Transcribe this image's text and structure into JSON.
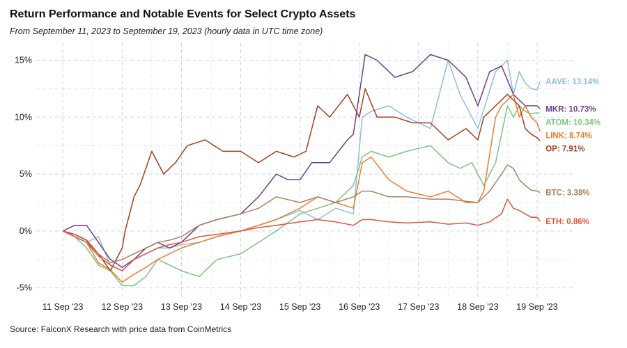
{
  "chart_data": {
    "type": "line",
    "title": "Return Performance and Notable Events for Select Crypto Assets",
    "subtitle": "From September 11, 2023 to September 19, 2023 (hourly data in UTC time zone)",
    "source": "Source: FalconX Research with price data from CoinMetrics",
    "xlabel": "",
    "ylabel": "",
    "x_unit": "days since 11 Sep 2023 00:00 UTC",
    "xlim": [
      -0.45,
      8.6
    ],
    "ylim": [
      -6,
      16.5
    ],
    "x_ticks": [
      {
        "value": 0,
        "label": "11 Sep '23"
      },
      {
        "value": 1,
        "label": "12 Sep '23"
      },
      {
        "value": 2,
        "label": "13 Sep '23"
      },
      {
        "value": 3,
        "label": "14 Sep '23"
      },
      {
        "value": 4,
        "label": "15 Sep '23"
      },
      {
        "value": 5,
        "label": "16 Sep '23"
      },
      {
        "value": 6,
        "label": "17 Sep '23"
      },
      {
        "value": 7,
        "label": "18 Sep '23"
      },
      {
        "value": 8,
        "label": "19 Sep '23"
      }
    ],
    "y_ticks": [
      {
        "value": -5,
        "label": "-5%"
      },
      {
        "value": 0,
        "label": "0%"
      },
      {
        "value": 5,
        "label": "5%"
      },
      {
        "value": 10,
        "label": "10%"
      },
      {
        "value": 15,
        "label": "15%"
      }
    ],
    "grid": true,
    "series": [
      {
        "name": "AAVE",
        "end_label": "AAVE: 13.14%",
        "color": "#8fbfdc",
        "x": [
          0,
          0.4,
          0.6,
          0.8,
          1.0,
          1.2,
          1.4,
          1.6,
          1.8,
          2.0,
          2.3,
          2.6,
          3.0,
          3.3,
          3.6,
          4.0,
          4.3,
          4.6,
          4.9,
          5.05,
          5.2,
          5.5,
          5.8,
          6.2,
          6.5,
          6.7,
          6.9,
          7.0,
          7.3,
          7.5,
          7.6,
          7.7,
          7.8,
          7.9,
          8.0,
          8.05
        ],
        "y": [
          0,
          -1,
          -0.5,
          -3,
          -3.5,
          -2.5,
          -2,
          -1.5,
          -1.5,
          -1.2,
          -1,
          -0.5,
          0,
          0.5,
          1,
          1.8,
          1,
          2,
          1.5,
          10,
          10.5,
          11,
          10,
          9,
          15,
          12,
          10,
          9,
          14,
          15,
          12,
          14,
          13,
          12.5,
          12.4,
          13.14
        ]
      },
      {
        "name": "MKR",
        "end_label": "MKR: 10.73%",
        "color": "#6d3f8c",
        "x": [
          0,
          0.2,
          0.4,
          0.6,
          0.8,
          1.0,
          1.2,
          1.4,
          1.6,
          1.8,
          2.0,
          2.3,
          2.6,
          3.0,
          3.3,
          3.6,
          3.8,
          4.0,
          4.2,
          4.5,
          4.8,
          4.9,
          5.0,
          5.1,
          5.3,
          5.6,
          5.9,
          6.2,
          6.5,
          6.8,
          7.0,
          7.2,
          7.4,
          7.6,
          7.8,
          8.0,
          8.05
        ],
        "y": [
          0,
          0.5,
          0.5,
          -1,
          -2.5,
          -3.2,
          -2.5,
          -1.5,
          -1,
          -1.5,
          -1,
          0.5,
          1,
          1.5,
          3,
          5,
          4.5,
          4.5,
          6,
          6,
          8,
          8.5,
          12,
          15.5,
          15,
          13.5,
          14,
          15.5,
          15,
          13.5,
          11,
          14,
          14.5,
          12,
          11,
          11,
          10.73
        ]
      },
      {
        "name": "ATOM",
        "end_label": "ATOM: 10.34%",
        "color": "#7dc47d",
        "x": [
          0,
          0.2,
          0.4,
          0.6,
          0.8,
          1.0,
          1.2,
          1.4,
          1.6,
          1.8,
          2.0,
          2.3,
          2.6,
          3.0,
          3.3,
          3.6,
          4.0,
          4.3,
          4.6,
          4.9,
          5.05,
          5.2,
          5.5,
          5.8,
          6.2,
          6.5,
          6.7,
          6.9,
          7.0,
          7.1,
          7.3,
          7.5,
          7.6,
          7.7,
          7.8,
          7.9,
          8.0,
          8.05
        ],
        "y": [
          0,
          -0.5,
          -1.5,
          -3,
          -3.5,
          -4.8,
          -4.8,
          -4,
          -2.5,
          -3,
          -3.5,
          -4,
          -2.5,
          -2,
          -1,
          0,
          1.5,
          2,
          2.5,
          4,
          6.5,
          7,
          6.5,
          7,
          7.5,
          6,
          5.5,
          6,
          5,
          4,
          6,
          11,
          10,
          11,
          10.5,
          10.3,
          10.4,
          10.34
        ]
      },
      {
        "name": "LINK",
        "end_label": "LINK: 8.74%",
        "color": "#ee7c2f",
        "x": [
          0,
          0.2,
          0.4,
          0.6,
          0.8,
          1.0,
          1.2,
          1.4,
          1.6,
          1.8,
          2.0,
          2.3,
          2.6,
          3.0,
          3.3,
          3.6,
          4.0,
          4.3,
          4.6,
          4.9,
          5.05,
          5.2,
          5.5,
          5.8,
          6.2,
          6.5,
          6.8,
          7.0,
          7.1,
          7.3,
          7.4,
          7.5,
          7.6,
          7.7,
          7.8,
          7.9,
          8.0,
          8.05
        ],
        "y": [
          0,
          -0.5,
          -1,
          -2.8,
          -3.4,
          -4.5,
          -3.8,
          -3.2,
          -2.5,
          -2,
          -1.5,
          -1,
          -0.5,
          0,
          0.5,
          1,
          2,
          3,
          2.5,
          2,
          6,
          6.5,
          4.5,
          3.5,
          3,
          3.5,
          2.5,
          2.5,
          3.5,
          10,
          11,
          11.5,
          12,
          10,
          11,
          10,
          9.5,
          8.74
        ]
      },
      {
        "name": "OP",
        "end_label": "OP: 7.91%",
        "color": "#a5401c",
        "x": [
          0,
          0.2,
          0.4,
          0.6,
          0.8,
          1.0,
          1.05,
          1.2,
          1.3,
          1.5,
          1.7,
          1.9,
          2.1,
          2.4,
          2.7,
          3.0,
          3.3,
          3.6,
          3.9,
          4.1,
          4.3,
          4.5,
          4.8,
          5.0,
          5.1,
          5.3,
          5.6,
          5.9,
          6.2,
          6.5,
          6.8,
          7.0,
          7.1,
          7.3,
          7.5,
          7.7,
          7.8,
          7.9,
          8.0,
          8.05
        ],
        "y": [
          0,
          -0.3,
          -0.8,
          -2,
          -3.5,
          -1.5,
          0,
          3,
          4,
          7,
          5,
          6,
          7.5,
          8,
          7,
          7,
          6,
          7,
          6.5,
          7,
          11,
          10,
          12,
          10,
          12.5,
          10,
          10,
          9.5,
          9.5,
          8,
          9,
          8,
          10,
          11,
          12,
          11,
          9,
          8.5,
          8.2,
          7.91
        ]
      },
      {
        "name": "BTC",
        "end_label": "BTC: 3.38%",
        "color": "#a8835f",
        "x": [
          0,
          0.2,
          0.4,
          0.6,
          0.8,
          1.0,
          1.2,
          1.4,
          1.6,
          1.8,
          2.0,
          2.3,
          2.6,
          3.0,
          3.3,
          3.6,
          4.0,
          4.3,
          4.6,
          4.9,
          5.05,
          5.2,
          5.5,
          5.8,
          6.2,
          6.5,
          6.8,
          7.0,
          7.2,
          7.4,
          7.5,
          7.6,
          7.7,
          7.8,
          7.9,
          8.0,
          8.05
        ],
        "y": [
          0,
          -0.5,
          -1,
          -2,
          -2.8,
          -2.5,
          -2,
          -1.5,
          -1,
          -0.8,
          -0.5,
          0.5,
          1,
          1.5,
          2,
          3,
          2.5,
          3,
          2.5,
          3,
          3.5,
          3.5,
          3,
          3,
          2.8,
          2.8,
          2.6,
          2.5,
          3.5,
          5,
          5.8,
          5.5,
          4.5,
          4,
          3.6,
          3.5,
          3.38
        ]
      },
      {
        "name": "ETH",
        "end_label": "ETH: 0.86%",
        "color": "#e2553a",
        "x": [
          0,
          0.2,
          0.4,
          0.6,
          0.8,
          1.0,
          1.2,
          1.4,
          1.6,
          1.8,
          2.0,
          2.3,
          2.6,
          3.0,
          3.3,
          3.6,
          4.0,
          4.3,
          4.6,
          4.9,
          5.05,
          5.2,
          5.5,
          5.8,
          6.2,
          6.5,
          6.8,
          7.0,
          7.2,
          7.4,
          7.5,
          7.6,
          7.7,
          7.8,
          7.9,
          8.0,
          8.05
        ],
        "y": [
          0,
          -0.5,
          -1,
          -2.2,
          -3,
          -3.5,
          -2.5,
          -2,
          -1.5,
          -1.2,
          -1,
          -0.5,
          -0.3,
          0,
          0.3,
          0.5,
          0.8,
          1,
          0.8,
          0.5,
          1,
          1,
          0.8,
          0.7,
          0.8,
          0.6,
          0.7,
          0.5,
          0.8,
          1.5,
          2.8,
          2,
          1.8,
          1.5,
          1.2,
          1.2,
          0.86
        ]
      }
    ]
  }
}
